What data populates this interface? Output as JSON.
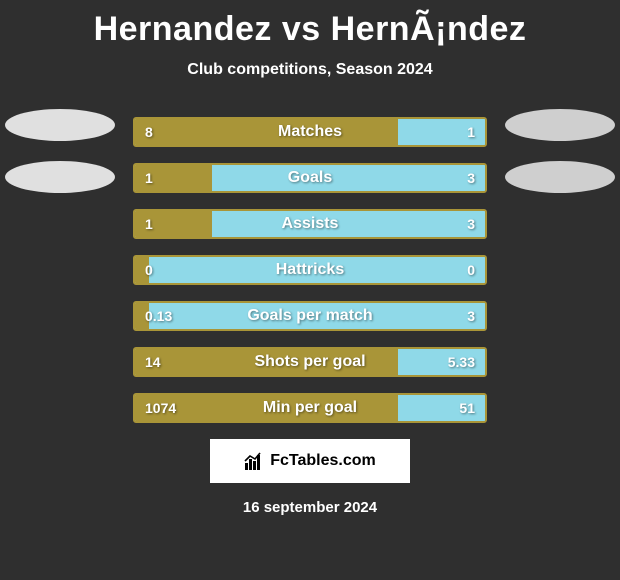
{
  "title": "Hernandez vs HernÃ¡ndez",
  "subtitle": "Club competitions, Season 2024",
  "date": "16 september 2024",
  "logo_text": "FcTables.com",
  "colors": {
    "player1": "#a99538",
    "player2": "#8fd9e8",
    "background": "#2f2f2f",
    "avatar_left": "#e0e0e0",
    "avatar_right": "#cfcfcf",
    "logo_bg": "#ffffff"
  },
  "stats": [
    {
      "label": "Matches",
      "left_val": "8",
      "right_val": "1",
      "left_pct": 75,
      "right_pct": 25
    },
    {
      "label": "Goals",
      "left_val": "1",
      "right_val": "3",
      "left_pct": 22,
      "right_pct": 78
    },
    {
      "label": "Assists",
      "left_val": "1",
      "right_val": "3",
      "left_pct": 22,
      "right_pct": 78
    },
    {
      "label": "Hattricks",
      "left_val": "0",
      "right_val": "0",
      "left_pct": 4,
      "right_pct": 4
    },
    {
      "label": "Goals per match",
      "left_val": "0.13",
      "right_val": "3",
      "left_pct": 4,
      "right_pct": 96
    },
    {
      "label": "Shots per goal",
      "left_val": "14",
      "right_val": "5.33",
      "left_pct": 75,
      "right_pct": 25
    },
    {
      "label": "Min per goal",
      "left_val": "1074",
      "right_val": "51",
      "left_pct": 75,
      "right_pct": 25
    }
  ]
}
